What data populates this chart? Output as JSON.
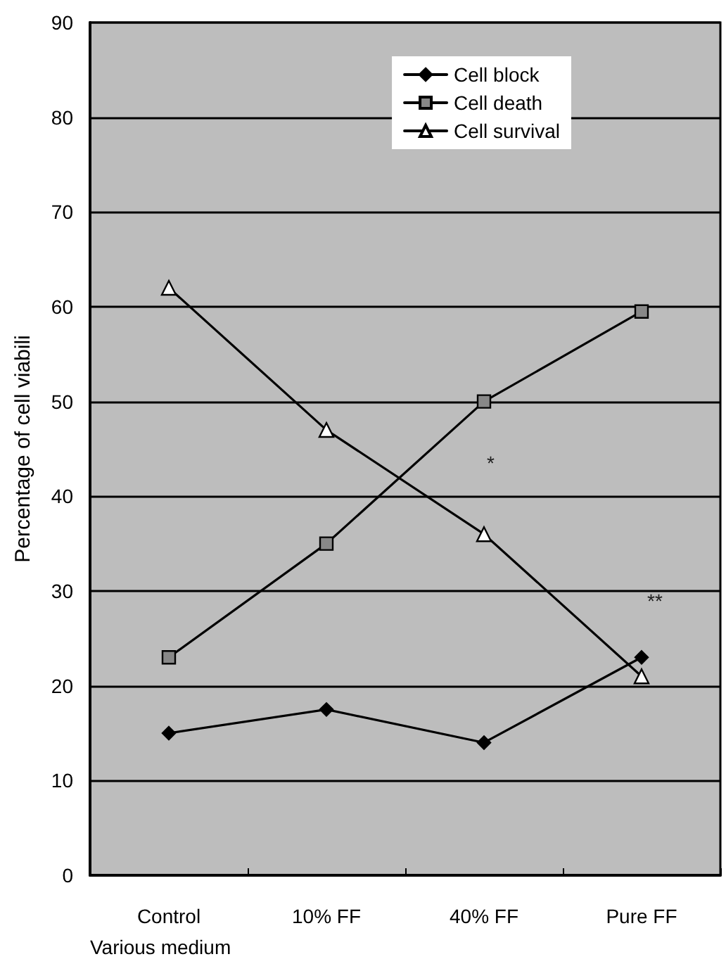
{
  "chart_data": {
    "type": "line",
    "xlabel": "Various medium",
    "ylabel": "Percentage of cell viabili",
    "categories": [
      "Control",
      "10% FF",
      "40% FF",
      "Pure FF"
    ],
    "series": [
      {
        "name": "Cell block",
        "color": "#000000",
        "marker": "diamond",
        "values": [
          15,
          17.5,
          14,
          23
        ]
      },
      {
        "name": "Cell death",
        "color": "#000000",
        "marker": "square",
        "values": [
          23,
          35,
          50,
          59.5
        ]
      },
      {
        "name": "Cell survival",
        "color": "#000000",
        "marker": "triangle",
        "values": [
          62,
          47,
          36,
          21
        ]
      }
    ],
    "annotations": [
      "*",
      "**"
    ],
    "ylim": [
      0,
      90
    ],
    "yticks": [
      0,
      10,
      20,
      30,
      40,
      50,
      60,
      70,
      80,
      90
    ],
    "grid": "y",
    "legend": "top right"
  }
}
